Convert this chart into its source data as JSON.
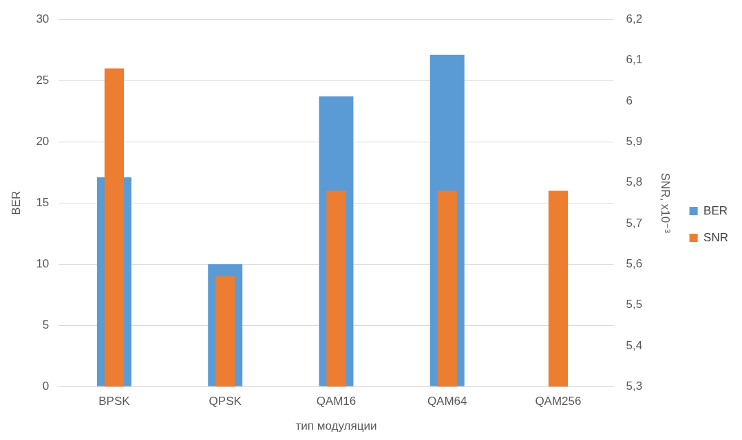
{
  "chart_data": {
    "type": "bar",
    "xlabel": "тип модуляции",
    "ylabel": "BER",
    "y2label": "SNR, x10⁻³",
    "categories": [
      "BPSK",
      "QPSK",
      "QAM16",
      "QAM64",
      "QAM256"
    ],
    "series": [
      {
        "name": "BER",
        "color": "#5b9bd5",
        "values": [
          17.1,
          10,
          23.7,
          27.1,
          0
        ]
      },
      {
        "name": "SNR",
        "color": "#ed7d31",
        "axis": "y2",
        "values": [
          6.08,
          5.57,
          5.78,
          5.78,
          5.78
        ]
      }
    ],
    "ylim": [
      0,
      30
    ],
    "yticks": [
      0,
      5,
      10,
      15,
      20,
      25,
      30
    ],
    "y2lim": [
      5.3,
      6.2
    ],
    "y2ticks": [
      {
        "value": 5.3,
        "label": "5,3"
      },
      {
        "value": 5.4,
        "label": "5,4"
      },
      {
        "value": 5.5,
        "label": "5,5"
      },
      {
        "value": 5.6,
        "label": "5,6"
      },
      {
        "value": 5.7,
        "label": "5,7"
      },
      {
        "value": 5.8,
        "label": "5,8"
      },
      {
        "value": 5.9,
        "label": "5,9"
      },
      {
        "value": 6,
        "label": "6"
      },
      {
        "value": 6.1,
        "label": "6,1"
      },
      {
        "value": 6.2,
        "label": "6,2"
      }
    ],
    "grid": "y",
    "legend": "right"
  }
}
